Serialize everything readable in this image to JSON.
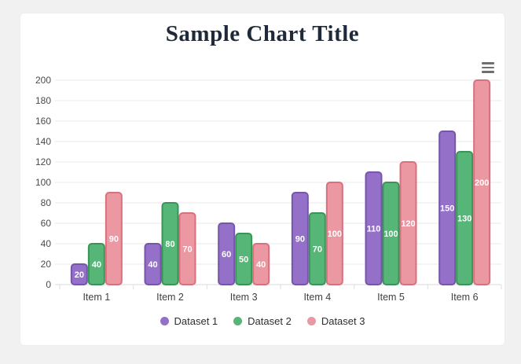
{
  "window": {
    "background": "#f1f1f1",
    "card_background": "#ffffff"
  },
  "header": {
    "title": "Sample Chart Title",
    "title_color": "#1e2a3a"
  },
  "toolbar": {
    "menu_icon": "hamburger-icon"
  },
  "chart_data": {
    "type": "bar",
    "title": "Sample Chart Title",
    "categories": [
      "Item 1",
      "Item 2",
      "Item 3",
      "Item 4",
      "Item 5",
      "Item 6"
    ],
    "series": [
      {
        "name": "Dataset 1",
        "values": [
          20,
          40,
          60,
          90,
          110,
          150
        ],
        "fill_color": "#9470c8",
        "border_color": "#7656ab"
      },
      {
        "name": "Dataset 2",
        "values": [
          40,
          80,
          50,
          70,
          100,
          130
        ],
        "fill_color": "#56b677",
        "border_color": "#3a9458"
      },
      {
        "name": "Dataset 3",
        "values": [
          90,
          70,
          40,
          100,
          120,
          200
        ],
        "fill_color": "#eb98a2",
        "border_color": "#d9707e"
      }
    ],
    "xlabel": "",
    "ylabel": "",
    "ylim": [
      0,
      200
    ],
    "yticks": [
      0,
      20,
      40,
      60,
      80,
      100,
      120,
      140,
      160,
      180,
      200
    ],
    "grid": true,
    "legend_position": "bottom",
    "value_labels": "white bold numbers centered inside each bar",
    "colors": {
      "gridline": "#e8e8e8",
      "axis_line": "#d8d8d8",
      "tick_label": "#4a4a4a",
      "bar_value_label": "#ffffff"
    }
  }
}
